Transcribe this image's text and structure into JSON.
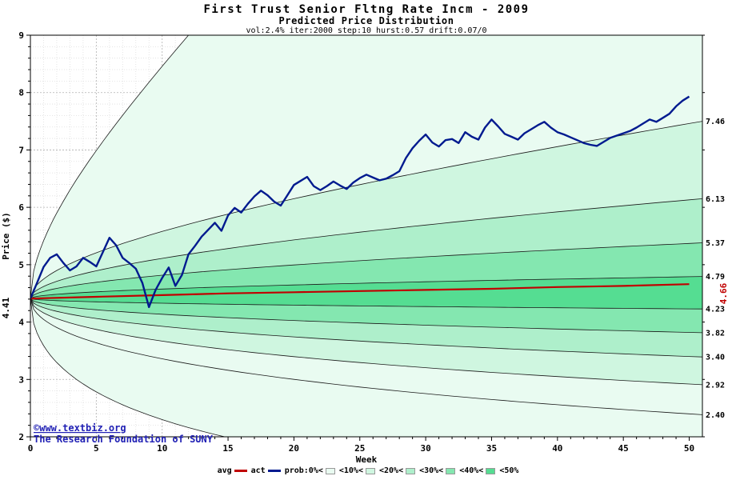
{
  "header": {
    "title": "First Trust Senior Fltng Rate Incm  - 2009",
    "subtitle": "Predicted Price Distribution",
    "params": "vol:2.4% iter:2000 step:10 hurst:0.57 drift:0.07/0"
  },
  "watermark": {
    "line1": "©www.textbiz.org",
    "line2": "The Research Foundation of SUNY"
  },
  "legend": {
    "items": [
      {
        "label": "avg",
        "swatch": "line",
        "color": "#c00000"
      },
      {
        "label": "act",
        "swatch": "line",
        "color": "#001a8f"
      },
      {
        "label": "prob:0%<",
        "swatch": "box",
        "color": "#e9fbf1"
      },
      {
        "label": "<10%<",
        "swatch": "box",
        "color": "#cff6e0"
      },
      {
        "label": "<20%<",
        "swatch": "box",
        "color": "#aeefcb"
      },
      {
        "label": "<30%<",
        "swatch": "box",
        "color": "#84e7b0"
      },
      {
        "label": "<40%<",
        "swatch": "box",
        "color": "#55dd92"
      },
      {
        "label": "<50%",
        "swatch": "none",
        "color": ""
      }
    ]
  },
  "chart_data": {
    "type": "area",
    "title": "First Trust Senior Fltng Rate Incm  - 2009",
    "subtitle": "Predicted Price Distribution",
    "params_line": "vol:2.4% iter:2000 step:10 hurst:0.57 drift:0.07/0",
    "xlabel": "Week",
    "ylabel": "Price ($)",
    "xlim": [
      0,
      51
    ],
    "ylim": [
      2,
      9
    ],
    "xticks": [
      0,
      5,
      10,
      15,
      20,
      25,
      30,
      35,
      40,
      45,
      50
    ],
    "yticks": [
      2,
      3,
      4,
      5,
      6,
      7,
      8,
      9
    ],
    "grid": "on",
    "legend_position": "bottom",
    "start_price": 4.41,
    "start_label": "4.41",
    "avg_end_label": "4.66",
    "horizon_weeks": 50,
    "boundaries": [
      {
        "name": "max",
        "c": 1.456,
        "end_label": ""
      },
      {
        "name": "p10-upper",
        "c": 0.5257,
        "end_label": "7.46"
      },
      {
        "name": "p20-upper",
        "c": 0.3293,
        "end_label": "6.13"
      },
      {
        "name": "p30-upper",
        "c": 0.197,
        "end_label": "5.37"
      },
      {
        "name": "p40-upper",
        "c": 0.0827,
        "end_label": "4.79"
      },
      {
        "name": "p40-lower",
        "c": -0.0417,
        "end_label": "4.23"
      },
      {
        "name": "p30-lower",
        "c": -0.1436,
        "end_label": "3.82"
      },
      {
        "name": "p20-lower",
        "c": -0.2601,
        "end_label": "3.40"
      },
      {
        "name": "p10-lower",
        "c": -0.4124,
        "end_label": "2.92"
      },
      {
        "name": "p0-lower",
        "c": -0.6086,
        "end_label": "2.40"
      },
      {
        "name": "min",
        "c": -1.456,
        "end_label": ""
      }
    ],
    "band_fills": [
      "#e9fbf1",
      "#cff6e0",
      "#aeefcb",
      "#84e7b0",
      "#55dd92",
      "#84e7b0",
      "#aeefcb",
      "#cff6e0",
      "#e9fbf1",
      "#e9fbf1"
    ],
    "avg_series": {
      "name": "avg",
      "color": "#c00000",
      "x_start": 0,
      "x_step": 5,
      "y": [
        4.41,
        4.44,
        4.47,
        4.5,
        4.52,
        4.54,
        4.56,
        4.58,
        4.61,
        4.63,
        4.66
      ]
    },
    "act_series": {
      "name": "act",
      "color": "#001a8f",
      "x_start": 0,
      "x_step": 0.5,
      "y": [
        4.41,
        4.68,
        4.96,
        5.12,
        5.18,
        5.03,
        4.9,
        4.97,
        5.12,
        5.05,
        4.97,
        5.22,
        5.47,
        5.34,
        5.12,
        5.03,
        4.93,
        4.68,
        4.26,
        4.56,
        4.77,
        4.95,
        4.63,
        4.82,
        5.18,
        5.33,
        5.49,
        5.61,
        5.73,
        5.59,
        5.86,
        5.99,
        5.91,
        6.06,
        6.19,
        6.29,
        6.21,
        6.1,
        6.03,
        6.21,
        6.39,
        6.46,
        6.53,
        6.37,
        6.3,
        6.37,
        6.45,
        6.38,
        6.32,
        6.43,
        6.51,
        6.57,
        6.52,
        6.47,
        6.5,
        6.56,
        6.63,
        6.86,
        7.03,
        7.16,
        7.27,
        7.13,
        7.06,
        7.17,
        7.19,
        7.12,
        7.31,
        7.23,
        7.18,
        7.39,
        7.53,
        7.41,
        7.28,
        7.23,
        7.18,
        7.29,
        7.36,
        7.43,
        7.49,
        7.39,
        7.31,
        7.27,
        7.22,
        7.17,
        7.12,
        7.09,
        7.07,
        7.14,
        7.21,
        7.25,
        7.29,
        7.33,
        7.39,
        7.46,
        7.53,
        7.49,
        7.56,
        7.63,
        7.76,
        7.86,
        7.93
      ]
    }
  }
}
